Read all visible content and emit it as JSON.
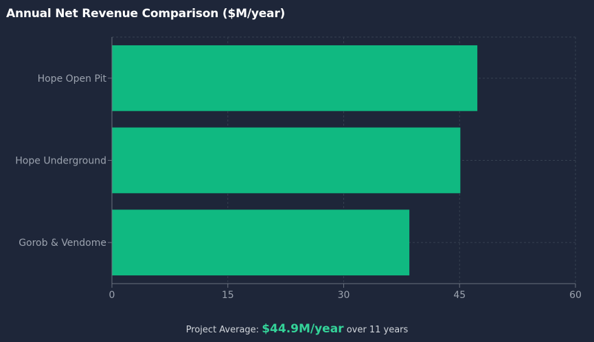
{
  "chart_data": {
    "type": "bar",
    "orientation": "horizontal",
    "title": "Annual Net Revenue Comparison ($M/year)",
    "categories": [
      "Hope Open Pit",
      "Hope Underground",
      "Gorob & Vendome"
    ],
    "values": [
      47.3,
      45.1,
      38.5
    ],
    "xlim": [
      0,
      60
    ],
    "xticks": [
      0,
      15,
      30,
      45,
      60
    ],
    "grid": true,
    "legend": "none",
    "bar_color": "#10b981"
  },
  "footer": {
    "prefix": "Project Average:",
    "value": "$44.9M/year",
    "suffix": "over 11 years"
  },
  "colors": {
    "background": "#1e2639",
    "bar": "#10b981",
    "highlight": "#34d399",
    "axis": "#6b7280",
    "grid": "#374151",
    "tick_text": "#9ca3af"
  }
}
